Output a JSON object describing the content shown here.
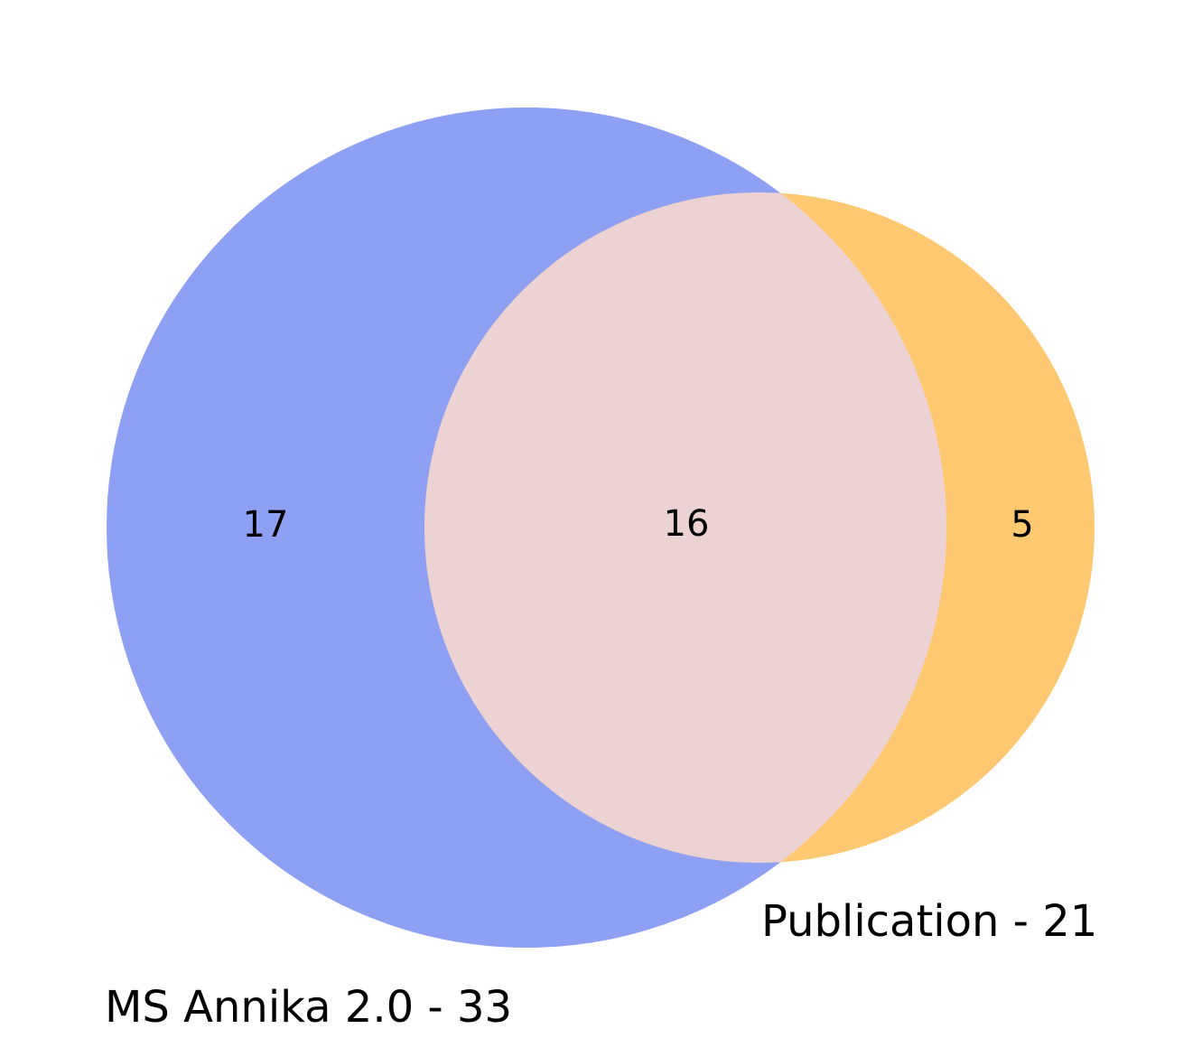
{
  "chart_data": {
    "type": "venn",
    "title": "",
    "sets": [
      {
        "name": "MS Annika 2.0",
        "label": "MS Annika 2.0 - 33",
        "size": 33,
        "color": "#8da0f4"
      },
      {
        "name": "Publication",
        "label": "Publication - 21",
        "size": 21,
        "color": "#fec871"
      }
    ],
    "regions": [
      {
        "sets": [
          "MS Annika 2.0"
        ],
        "value": 17,
        "label": "17"
      },
      {
        "sets": [
          "MS Annika 2.0",
          "Publication"
        ],
        "value": 16,
        "label": "16"
      },
      {
        "sets": [
          "Publication"
        ],
        "value": 5,
        "label": "5"
      }
    ],
    "overlap_color": "#ecd2d3"
  }
}
